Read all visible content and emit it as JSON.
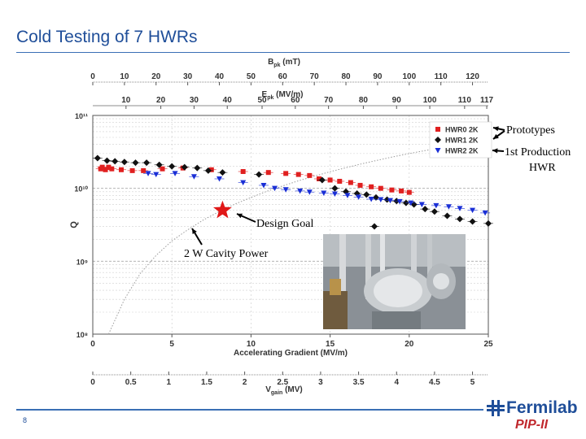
{
  "slide": {
    "title": "Cold Testing of 7 HWRs",
    "page_number": "8",
    "logo_text": "Fermilab",
    "logo_sub": "PIP-II"
  },
  "callouts": {
    "prototypes": "Prototypes",
    "production_line1": "1st Production",
    "production_line2": "HWR",
    "design_goal": "Design Goal",
    "cavity_power": "2 W Cavity Power"
  },
  "photo": {
    "alt": "photo of half-wave resonator cavity"
  },
  "icons": {
    "logo": "fermilab-logo-icon",
    "arrow": "arrow-icon",
    "star": "star-icon"
  },
  "colors": {
    "title": "#1f4e99",
    "hwr0": "#e02020",
    "hwr1": "#111111",
    "hwr2": "#1a2fd6",
    "goal": "#e01818"
  },
  "chart_data": {
    "type": "scatter",
    "xlabel": "Accelerating Gradient (MV/m)",
    "ylabel": "Q",
    "xlim": [
      0,
      25
    ],
    "ylim": [
      100000000.0,
      100000000000.0
    ],
    "y_scale": "log",
    "grid": true,
    "legend_position": "top-right",
    "x_ticks": [
      "0",
      "5",
      "10",
      "15",
      "20",
      "25"
    ],
    "y_ticks": [
      "10⁸",
      "10⁹",
      "10¹⁰",
      "10¹¹"
    ],
    "secondary_axes": [
      {
        "label": "B_pk (mT)",
        "position": "top",
        "ticks": [
          "0",
          "10",
          "20",
          "30",
          "40",
          "50",
          "60",
          "70",
          "80",
          "90",
          "100",
          "110",
          "120"
        ],
        "ticks_at_gradient": [
          0,
          2,
          4,
          6,
          8,
          10,
          12,
          14,
          16,
          18,
          20,
          22,
          24
        ]
      },
      {
        "label": "E_pk (MV/m)",
        "position": "top",
        "ticks": [
          "10",
          "20",
          "30",
          "40",
          "50",
          "60",
          "70",
          "80",
          "90",
          "100",
          "110",
          "117"
        ],
        "ticks_at_gradient": [
          2.1,
          4.3,
          6.4,
          8.5,
          10.7,
          12.8,
          14.9,
          17.1,
          19.2,
          21.3,
          23.5,
          24.9
        ]
      },
      {
        "label": "V_gain (MV)",
        "position": "bottom",
        "ticks": [
          "0",
          "0.5",
          "1",
          "1.5",
          "2",
          "2.5",
          "3",
          "3.5",
          "4",
          "4.5",
          "5"
        ],
        "ticks_at_gradient": [
          0,
          2.4,
          4.8,
          7.2,
          9.6,
          12,
          14.4,
          16.8,
          19.2,
          21.6,
          24
        ]
      }
    ],
    "series": [
      {
        "name": "HWR0 2K",
        "marker": "square",
        "color": "#e02020",
        "points": [
          [
            0.5,
            18500000000.0
          ],
          [
            0.8,
            18000000000.0
          ],
          [
            1.2,
            18500000000.0
          ],
          [
            1.8,
            18000000000.0
          ],
          [
            2.5,
            17500000000.0
          ],
          [
            3.2,
            17500000000.0
          ],
          [
            4.4,
            18500000000.0
          ],
          [
            5.7,
            19000000000.0
          ],
          [
            7.5,
            18000000000.0
          ],
          [
            9.5,
            17000000000.0
          ],
          [
            11.1,
            16500000000.0
          ],
          [
            12.2,
            16000000000.0
          ],
          [
            13.0,
            15500000000.0
          ],
          [
            13.7,
            15000000000.0
          ],
          [
            14.3,
            13500000000.0
          ],
          [
            15.0,
            13000000000.0
          ],
          [
            15.6,
            12500000000.0
          ],
          [
            16.3,
            12000000000.0
          ],
          [
            16.9,
            11000000000.0
          ],
          [
            17.6,
            10500000000.0
          ],
          [
            18.2,
            10000000000.0
          ],
          [
            18.9,
            9500000000.0
          ],
          [
            19.5,
            9200000000.0
          ],
          [
            20.0,
            8800000000.0
          ],
          [
            0.6,
            19500000000.0
          ],
          [
            1.0,
            19500000000.0
          ]
        ]
      },
      {
        "name": "HWR1 2K",
        "marker": "diamond",
        "color": "#111111",
        "points": [
          [
            0.3,
            26000000000.0
          ],
          [
            0.9,
            24000000000.0
          ],
          [
            1.4,
            23500000000.0
          ],
          [
            2.0,
            23000000000.0
          ],
          [
            2.7,
            22500000000.0
          ],
          [
            3.4,
            22500000000.0
          ],
          [
            4.2,
            21000000000.0
          ],
          [
            5.0,
            20000000000.0
          ],
          [
            5.8,
            19500000000.0
          ],
          [
            6.6,
            19000000000.0
          ],
          [
            7.3,
            17500000000.0
          ],
          [
            8.2,
            16500000000.0
          ],
          [
            10.5,
            15500000000.0
          ],
          [
            14.5,
            13000000000.0
          ],
          [
            15.3,
            10000000000.0
          ],
          [
            16.0,
            9000000000.0
          ],
          [
            16.7,
            8500000000.0
          ],
          [
            17.3,
            8200000000.0
          ],
          [
            17.9,
            7500000000.0
          ],
          [
            18.6,
            7000000000.0
          ],
          [
            19.2,
            6700000000.0
          ],
          [
            19.8,
            6300000000.0
          ],
          [
            20.3,
            6000000000.0
          ],
          [
            21.0,
            5200000000.0
          ],
          [
            21.6,
            4800000000.0
          ],
          [
            22.4,
            4200000000.0
          ],
          [
            23.2,
            3800000000.0
          ],
          [
            24.0,
            3500000000.0
          ],
          [
            25.0,
            3300000000.0
          ],
          [
            17.8,
            3000000000.0
          ]
        ]
      },
      {
        "name": "HWR2 2K",
        "marker": "triangle-down",
        "color": "#1a2fd6",
        "points": [
          [
            3.5,
            16000000000.0
          ],
          [
            4.0,
            15500000000.0
          ],
          [
            5.2,
            16000000000.0
          ],
          [
            6.4,
            14500000000.0
          ],
          [
            8.0,
            13500000000.0
          ],
          [
            9.5,
            12000000000.0
          ],
          [
            10.8,
            11000000000.0
          ],
          [
            11.5,
            10000000000.0
          ],
          [
            12.2,
            9600000000.0
          ],
          [
            13.1,
            9200000000.0
          ],
          [
            13.7,
            8900000000.0
          ],
          [
            14.6,
            8600000000.0
          ],
          [
            15.3,
            8400000000.0
          ],
          [
            16.1,
            8000000000.0
          ],
          [
            16.8,
            7600000000.0
          ],
          [
            17.6,
            7100000000.0
          ],
          [
            18.2,
            7000000000.0
          ],
          [
            18.8,
            6800000000.0
          ],
          [
            19.4,
            6600000000.0
          ],
          [
            20.1,
            6300000000.0
          ],
          [
            20.8,
            6000000000.0
          ],
          [
            21.7,
            5800000000.0
          ],
          [
            22.5,
            5600000000.0
          ],
          [
            23.2,
            5300000000.0
          ],
          [
            24.0,
            5000000000.0
          ],
          [
            24.8,
            4600000000.0
          ]
        ]
      }
    ],
    "design_goal": {
      "x": 8.2,
      "y": 5000000000.0,
      "label": "Design Goal"
    },
    "power_curve": {
      "label": "2 W Cavity Power",
      "points": [
        [
          1.0,
          100000000.0
        ],
        [
          2.0,
          300000000.0
        ],
        [
          3.0,
          680000000.0
        ],
        [
          4.0,
          1200000000.0
        ],
        [
          5.0,
          1900000000.0
        ],
        [
          6.0,
          2700000000.0
        ],
        [
          7.0,
          3700000000.0
        ],
        [
          8.0,
          4800000000.0
        ],
        [
          9.0,
          6100000000.0
        ],
        [
          10.0,
          7500000000.0
        ],
        [
          11.0,
          9100000000.0
        ],
        [
          12.0,
          10800000000.0
        ],
        [
          13.0,
          12700000000.0
        ],
        [
          14.0,
          14700000000.0
        ],
        [
          15.0,
          16900000000.0
        ],
        [
          16.0,
          19200000000.0
        ],
        [
          17.0,
          21700000000.0
        ],
        [
          18.0,
          24300000000.0
        ],
        [
          19.0,
          27100000000.0
        ],
        [
          20.0,
          30000000000.0
        ],
        [
          21.0,
          33000000000.0
        ],
        [
          22.0,
          36000000000.0
        ],
        [
          23.0,
          39500000000.0
        ],
        [
          24.0,
          43000000000.0
        ],
        [
          25.0,
          47000000000.0
        ]
      ]
    }
  }
}
